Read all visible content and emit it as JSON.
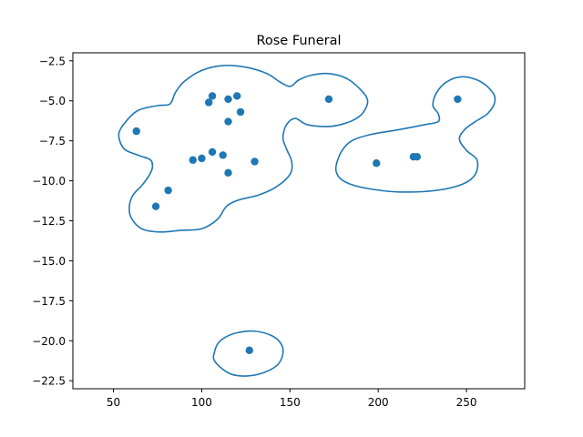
{
  "chart_data": {
    "type": "scatter",
    "title": "Rose Funeral",
    "xlabel": "",
    "ylabel": "",
    "xlim": [
      27,
      283
    ],
    "ylim": [
      -23.0,
      -2.0
    ],
    "x_ticks": [
      50,
      100,
      150,
      200,
      250
    ],
    "y_ticks": [
      -2.5,
      -5.0,
      -7.5,
      -10.0,
      -12.5,
      -15.0,
      -17.5,
      -20.0,
      -22.5
    ],
    "grid": false,
    "legend": "none",
    "colors": {
      "points": "#1f77b4",
      "contour": "#1f77b4"
    },
    "points": [
      {
        "x": 106,
        "y": -4.7
      },
      {
        "x": 120,
        "y": -4.7
      },
      {
        "x": 104,
        "y": -5.1
      },
      {
        "x": 115,
        "y": -4.9
      },
      {
        "x": 122,
        "y": -5.7
      },
      {
        "x": 115,
        "y": -6.3
      },
      {
        "x": 172,
        "y": -4.9
      },
      {
        "x": 245,
        "y": -4.9
      },
      {
        "x": 63,
        "y": -6.9
      },
      {
        "x": 106,
        "y": -8.2
      },
      {
        "x": 112,
        "y": -8.4
      },
      {
        "x": 100,
        "y": -8.6
      },
      {
        "x": 95,
        "y": -8.7
      },
      {
        "x": 130,
        "y": -8.8
      },
      {
        "x": 115,
        "y": -9.5
      },
      {
        "x": 81,
        "y": -10.6
      },
      {
        "x": 74,
        "y": -11.6
      },
      {
        "x": 199,
        "y": -8.9
      },
      {
        "x": 220,
        "y": -8.5
      },
      {
        "x": 222,
        "y": -8.5
      },
      {
        "x": 127,
        "y": -20.6
      }
    ],
    "contours": [
      [
        [
          53,
          -7.1
        ],
        [
          57,
          -6.3
        ],
        [
          64,
          -5.6
        ],
        [
          75,
          -5.3
        ],
        [
          82,
          -5.2
        ],
        [
          85,
          -4.5
        ],
        [
          90,
          -3.8
        ],
        [
          100,
          -3.1
        ],
        [
          112,
          -2.8
        ],
        [
          125,
          -2.9
        ],
        [
          137,
          -3.3
        ],
        [
          144,
          -3.8
        ],
        [
          150,
          -4.1
        ],
        [
          155,
          -3.7
        ],
        [
          162,
          -3.4
        ],
        [
          172,
          -3.3
        ],
        [
          182,
          -3.6
        ],
        [
          190,
          -4.3
        ],
        [
          194,
          -5.0
        ],
        [
          191,
          -5.8
        ],
        [
          184,
          -6.3
        ],
        [
          173,
          -6.6
        ],
        [
          160,
          -6.5
        ],
        [
          153,
          -6.1
        ],
        [
          148,
          -6.5
        ],
        [
          146,
          -7.3
        ],
        [
          148,
          -8.0
        ],
        [
          151,
          -8.8
        ],
        [
          150,
          -9.6
        ],
        [
          142,
          -10.4
        ],
        [
          132,
          -10.9
        ],
        [
          121,
          -11.2
        ],
        [
          114,
          -11.6
        ],
        [
          109,
          -12.4
        ],
        [
          100,
          -13.0
        ],
        [
          88,
          -13.1
        ],
        [
          76,
          -13.2
        ],
        [
          66,
          -13.0
        ],
        [
          60,
          -12.3
        ],
        [
          59,
          -11.6
        ],
        [
          61,
          -10.9
        ],
        [
          66,
          -10.3
        ],
        [
          70,
          -9.7
        ],
        [
          72,
          -9.2
        ],
        [
          71,
          -8.7
        ],
        [
          64,
          -8.4
        ],
        [
          56,
          -8.0
        ],
        [
          53,
          -7.1
        ]
      ],
      [
        [
          176,
          -9.2
        ],
        [
          179,
          -8.2
        ],
        [
          185,
          -7.5
        ],
        [
          196,
          -7.1
        ],
        [
          212,
          -6.8
        ],
        [
          226,
          -6.5
        ],
        [
          234,
          -6.3
        ],
        [
          234,
          -5.8
        ],
        [
          231,
          -5.3
        ],
        [
          233,
          -4.5
        ],
        [
          239,
          -3.8
        ],
        [
          248,
          -3.5
        ],
        [
          258,
          -3.8
        ],
        [
          265,
          -4.5
        ],
        [
          266,
          -5.1
        ],
        [
          262,
          -5.8
        ],
        [
          255,
          -6.3
        ],
        [
          249,
          -6.8
        ],
        [
          246,
          -7.4
        ],
        [
          250,
          -8.1
        ],
        [
          256,
          -8.7
        ],
        [
          255,
          -9.6
        ],
        [
          248,
          -10.2
        ],
        [
          233,
          -10.6
        ],
        [
          212,
          -10.7
        ],
        [
          195,
          -10.5
        ],
        [
          184,
          -10.2
        ],
        [
          178,
          -9.8
        ],
        [
          176,
          -9.2
        ]
      ],
      [
        [
          107,
          -20.8
        ],
        [
          109,
          -20.2
        ],
        [
          113,
          -19.8
        ],
        [
          120,
          -19.5
        ],
        [
          130,
          -19.4
        ],
        [
          140,
          -19.7
        ],
        [
          145,
          -20.2
        ],
        [
          146,
          -20.8
        ],
        [
          143,
          -21.5
        ],
        [
          135,
          -22.0
        ],
        [
          126,
          -22.2
        ],
        [
          117,
          -22.1
        ],
        [
          111,
          -21.7
        ],
        [
          107,
          -21.2
        ],
        [
          107,
          -20.8
        ]
      ]
    ]
  }
}
